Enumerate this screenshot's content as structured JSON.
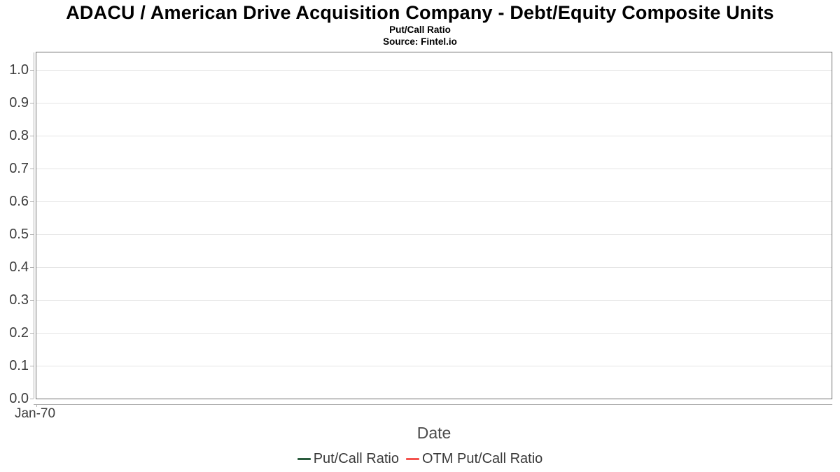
{
  "chart_data": {
    "type": "line",
    "title": "ADACU / American Drive Acquisition Company - Debt/Equity Composite Units",
    "subtitle": "Put/Call Ratio",
    "source_note": "Source: Fintel.io",
    "xlabel": "Date",
    "ylabel": "",
    "ylim": [
      0.0,
      1.0
    ],
    "ytick_labels": [
      "1.0",
      "0.9",
      "0.8",
      "0.7",
      "0.6",
      "0.5",
      "0.4",
      "0.3",
      "0.2",
      "0.1",
      "0.0"
    ],
    "xtick_labels": [
      "Jan-70"
    ],
    "grid": "horizontal",
    "legend_position": "bottom-center",
    "series": [
      {
        "name": "Put/Call Ratio",
        "color": "#2a5c3e",
        "x": [],
        "values": []
      },
      {
        "name": "OTM Put/Call Ratio",
        "color": "#f4534e",
        "x": [],
        "values": []
      }
    ]
  }
}
